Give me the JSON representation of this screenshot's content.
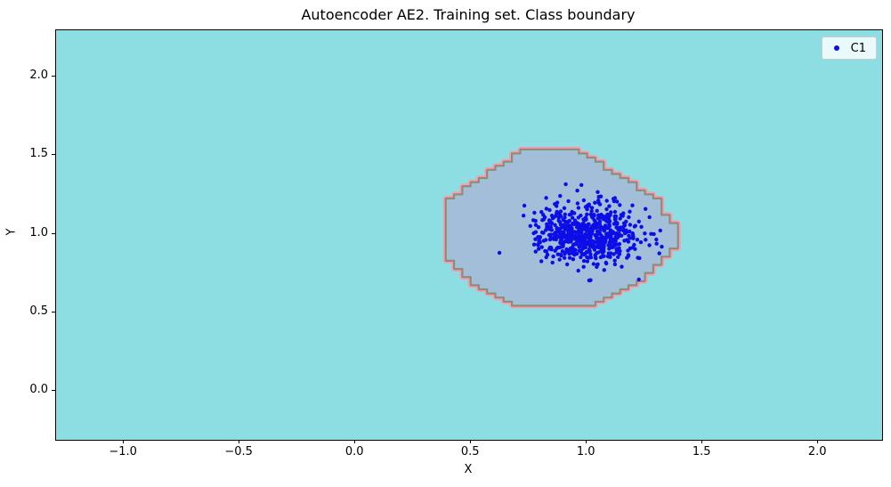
{
  "chart_data": {
    "type": "scatter",
    "title": "Autoencoder AE2. Training set. Class boundary",
    "xlabel": "X",
    "ylabel": "Y",
    "xlim": [
      -1.293,
      2.276
    ],
    "ylim": [
      -0.309,
      2.294
    ],
    "xticks": {
      "values": [
        -1.0,
        -0.5,
        0.0,
        0.5,
        1.0,
        1.5,
        2.0
      ],
      "labels": [
        "−1.0",
        "−0.5",
        "0.0",
        "0.5",
        "1.0",
        "1.5",
        "2.0"
      ]
    },
    "yticks": {
      "values": [
        0.0,
        0.5,
        1.0,
        1.5,
        2.0
      ],
      "labels": [
        "0.0",
        "0.5",
        "1.0",
        "1.5",
        "2.0"
      ]
    },
    "grid": false,
    "legend": {
      "position": "upper right",
      "entries": [
        {
          "label": "C1",
          "marker": "dot",
          "color": "#0d0de8"
        }
      ]
    },
    "colors": {
      "figure_bg": "#ffffff",
      "plot_bg": "#8ddee2",
      "spine": "#000000",
      "scatter": "#0d0de8",
      "region_fill": "#a3bed8",
      "band_outer": "#eaa2b2",
      "band_mid": "#c66e7b",
      "region_edge": "#6e9e73"
    },
    "series": [
      {
        "name": "C1",
        "distribution": "gaussian_cluster",
        "n": 650,
        "center": [
          1.0,
          1.005
        ],
        "std": [
          0.105,
          0.095
        ],
        "seed": 7,
        "extra_points": [
          [
            1.225,
            0.71
          ]
        ]
      }
    ],
    "decision_region": {
      "description": "stair-stepped class boundary (contour of autoencoder AE2 decision region)",
      "grid_step": [
        0.0357,
        0.026
      ],
      "x_range": [
        0.375,
        1.39
      ],
      "y_range": [
        0.54,
        1.535
      ],
      "polygon": [
        [
          0.375,
          1.19
        ],
        [
          0.73,
          1.535
        ],
        [
          0.955,
          1.535
        ],
        [
          1.24,
          1.27
        ],
        [
          1.33,
          1.2
        ],
        [
          1.345,
          1.07
        ],
        [
          1.39,
          1.05
        ],
        [
          1.39,
          0.93
        ],
        [
          1.28,
          0.77
        ],
        [
          1.19,
          0.66
        ],
        [
          1.03,
          0.54
        ],
        [
          0.69,
          0.54
        ],
        [
          0.52,
          0.68
        ],
        [
          0.43,
          0.8
        ],
        [
          0.375,
          0.865
        ]
      ]
    }
  }
}
